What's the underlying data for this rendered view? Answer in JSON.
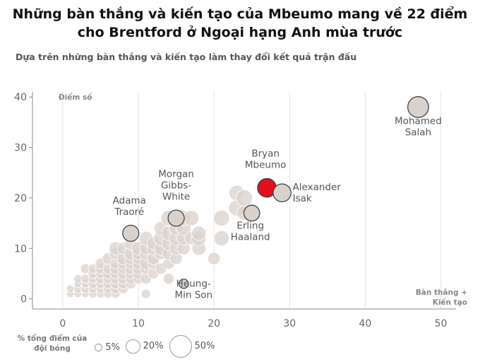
{
  "chart_data": {
    "type": "scatter",
    "title": "Những bàn thắng và kiến tạo của Mbeumo mang về 22 điểm cho Brentford ở Ngoại hạng Anh mùa trước",
    "subtitle": "Dựa trên những bàn thắng và kiến tạo làm thay đổi kết quả trận đấu",
    "ylabel": "Điểm số",
    "xlabel": "Bàn thắng + Kiến tạo",
    "xlim": [
      -4,
      52
    ],
    "ylim": [
      -2,
      41
    ],
    "x_ticks": [
      0,
      10,
      20,
      30,
      40,
      50
    ],
    "y_ticks": [
      0,
      10,
      20,
      30,
      40
    ],
    "grid": "vertical",
    "size_legend": {
      "title": "% tổng điểm của đội bóng",
      "items": [
        {
          "label": "5%",
          "value": 5
        },
        {
          "label": "20%",
          "value": 20
        },
        {
          "label": "50%",
          "value": 50
        }
      ]
    },
    "highlight_color": "#e0101e",
    "point_color": "#d9d2cc",
    "labeled_points": [
      {
        "name": "Mohamed Salah",
        "x": 47,
        "y": 38,
        "size": 45
      },
      {
        "name": "Bryan Mbeumo",
        "x": 27,
        "y": 22,
        "size": 36,
        "highlight": true
      },
      {
        "name": "Alexander Isak",
        "x": 29,
        "y": 21,
        "size": 33
      },
      {
        "name": "Erling Haaland",
        "x": 25,
        "y": 17,
        "size": 26
      },
      {
        "name": "Morgan Gibbs-White",
        "x": 15,
        "y": 16,
        "size": 27
      },
      {
        "name": "Adama Traoré",
        "x": 9,
        "y": 13,
        "size": 27
      },
      {
        "name": "Heung-Min Son",
        "x": 16,
        "y": 3,
        "size": 9
      }
    ],
    "points": [
      {
        "x": 1,
        "y": 1,
        "size": 6
      },
      {
        "x": 1,
        "y": 2,
        "size": 6
      },
      {
        "x": 2,
        "y": 1,
        "size": 6
      },
      {
        "x": 2,
        "y": 2,
        "size": 7
      },
      {
        "x": 2,
        "y": 3,
        "size": 6
      },
      {
        "x": 2,
        "y": 4,
        "size": 7
      },
      {
        "x": 3,
        "y": 1,
        "size": 6
      },
      {
        "x": 3,
        "y": 2,
        "size": 8
      },
      {
        "x": 3,
        "y": 3,
        "size": 7
      },
      {
        "x": 3,
        "y": 4,
        "size": 8
      },
      {
        "x": 3,
        "y": 6,
        "size": 10
      },
      {
        "x": 4,
        "y": 1,
        "size": 7
      },
      {
        "x": 4,
        "y": 2,
        "size": 8
      },
      {
        "x": 4,
        "y": 3,
        "size": 9
      },
      {
        "x": 4,
        "y": 4,
        "size": 8
      },
      {
        "x": 4,
        "y": 5,
        "size": 10
      },
      {
        "x": 4,
        "y": 6,
        "size": 9
      },
      {
        "x": 5,
        "y": 1,
        "size": 7
      },
      {
        "x": 5,
        "y": 2,
        "size": 8
      },
      {
        "x": 5,
        "y": 3,
        "size": 9
      },
      {
        "x": 5,
        "y": 4,
        "size": 10
      },
      {
        "x": 5,
        "y": 5,
        "size": 9
      },
      {
        "x": 5,
        "y": 6,
        "size": 11
      },
      {
        "x": 5,
        "y": 7,
        "size": 12
      },
      {
        "x": 6,
        "y": 1,
        "size": 8
      },
      {
        "x": 6,
        "y": 2,
        "size": 9
      },
      {
        "x": 6,
        "y": 3,
        "size": 10
      },
      {
        "x": 6,
        "y": 4,
        "size": 10
      },
      {
        "x": 6,
        "y": 5,
        "size": 12
      },
      {
        "x": 6,
        "y": 6,
        "size": 11
      },
      {
        "x": 6,
        "y": 8,
        "size": 14
      },
      {
        "x": 7,
        "y": 1,
        "size": 8
      },
      {
        "x": 7,
        "y": 2,
        "size": 10
      },
      {
        "x": 7,
        "y": 3,
        "size": 11
      },
      {
        "x": 7,
        "y": 4,
        "size": 12
      },
      {
        "x": 7,
        "y": 5,
        "size": 11
      },
      {
        "x": 7,
        "y": 6,
        "size": 13
      },
      {
        "x": 7,
        "y": 7,
        "size": 12
      },
      {
        "x": 7,
        "y": 9,
        "size": 16
      },
      {
        "x": 7,
        "y": 10,
        "size": 18
      },
      {
        "x": 8,
        "y": 2,
        "size": 10
      },
      {
        "x": 8,
        "y": 3,
        "size": 11
      },
      {
        "x": 8,
        "y": 4,
        "size": 12
      },
      {
        "x": 8,
        "y": 5,
        "size": 13
      },
      {
        "x": 8,
        "y": 6,
        "size": 12
      },
      {
        "x": 8,
        "y": 7,
        "size": 14
      },
      {
        "x": 8,
        "y": 8,
        "size": 16
      },
      {
        "x": 8,
        "y": 10,
        "size": 15
      },
      {
        "x": 9,
        "y": 3,
        "size": 11
      },
      {
        "x": 9,
        "y": 4,
        "size": 12
      },
      {
        "x": 9,
        "y": 5,
        "size": 13
      },
      {
        "x": 9,
        "y": 6,
        "size": 14
      },
      {
        "x": 9,
        "y": 7,
        "size": 13
      },
      {
        "x": 9,
        "y": 8,
        "size": 15
      },
      {
        "x": 9,
        "y": 9,
        "size": 17
      },
      {
        "x": 9,
        "y": 11,
        "size": 16
      },
      {
        "x": 10,
        "y": 4,
        "size": 12
      },
      {
        "x": 10,
        "y": 5,
        "size": 13
      },
      {
        "x": 10,
        "y": 6,
        "size": 14
      },
      {
        "x": 10,
        "y": 7,
        "size": 15
      },
      {
        "x": 10,
        "y": 8,
        "size": 14
      },
      {
        "x": 10,
        "y": 9,
        "size": 16
      },
      {
        "x": 10,
        "y": 10,
        "size": 18
      },
      {
        "x": 11,
        "y": 1,
        "size": 9
      },
      {
        "x": 11,
        "y": 4,
        "size": 12
      },
      {
        "x": 11,
        "y": 6,
        "size": 14
      },
      {
        "x": 11,
        "y": 7,
        "size": 15
      },
      {
        "x": 11,
        "y": 9,
        "size": 17
      },
      {
        "x": 11,
        "y": 10,
        "size": 16
      },
      {
        "x": 11,
        "y": 12,
        "size": 20
      },
      {
        "x": 12,
        "y": 5,
        "size": 12
      },
      {
        "x": 12,
        "y": 7,
        "size": 14
      },
      {
        "x": 12,
        "y": 8,
        "size": 16
      },
      {
        "x": 12,
        "y": 10,
        "size": 18
      },
      {
        "x": 12,
        "y": 11,
        "size": 17
      },
      {
        "x": 13,
        "y": 6,
        "size": 13
      },
      {
        "x": 13,
        "y": 9,
        "size": 16
      },
      {
        "x": 13,
        "y": 10,
        "size": 19
      },
      {
        "x": 13,
        "y": 12,
        "size": 22
      },
      {
        "x": 13,
        "y": 14,
        "size": 20
      },
      {
        "x": 14,
        "y": 4,
        "size": 12
      },
      {
        "x": 14,
        "y": 7,
        "size": 14
      },
      {
        "x": 14,
        "y": 9,
        "size": 17
      },
      {
        "x": 14,
        "y": 11,
        "size": 20
      },
      {
        "x": 14,
        "y": 13,
        "size": 21
      },
      {
        "x": 14,
        "y": 16,
        "size": 24
      },
      {
        "x": 15,
        "y": 8,
        "size": 15
      },
      {
        "x": 15,
        "y": 10,
        "size": 18
      },
      {
        "x": 15,
        "y": 12,
        "size": 20
      },
      {
        "x": 15,
        "y": 14,
        "size": 19
      },
      {
        "x": 16,
        "y": 10,
        "size": 17
      },
      {
        "x": 16,
        "y": 12,
        "size": 19
      },
      {
        "x": 16,
        "y": 14,
        "size": 22
      },
      {
        "x": 16,
        "y": 16,
        "size": 21
      },
      {
        "x": 17,
        "y": 12,
        "size": 18
      },
      {
        "x": 17,
        "y": 16,
        "size": 24
      },
      {
        "x": 18,
        "y": 10,
        "size": 20
      },
      {
        "x": 18,
        "y": 12,
        "size": 22
      },
      {
        "x": 18,
        "y": 13,
        "size": 21
      },
      {
        "x": 20,
        "y": 8,
        "size": 16
      },
      {
        "x": 21,
        "y": 12,
        "size": 24
      },
      {
        "x": 21,
        "y": 16,
        "size": 26
      },
      {
        "x": 23,
        "y": 18,
        "size": 26
      },
      {
        "x": 23,
        "y": 21,
        "size": 24
      },
      {
        "x": 24,
        "y": 20,
        "size": 28
      },
      {
        "x": 24,
        "y": 17,
        "size": 22
      }
    ]
  }
}
